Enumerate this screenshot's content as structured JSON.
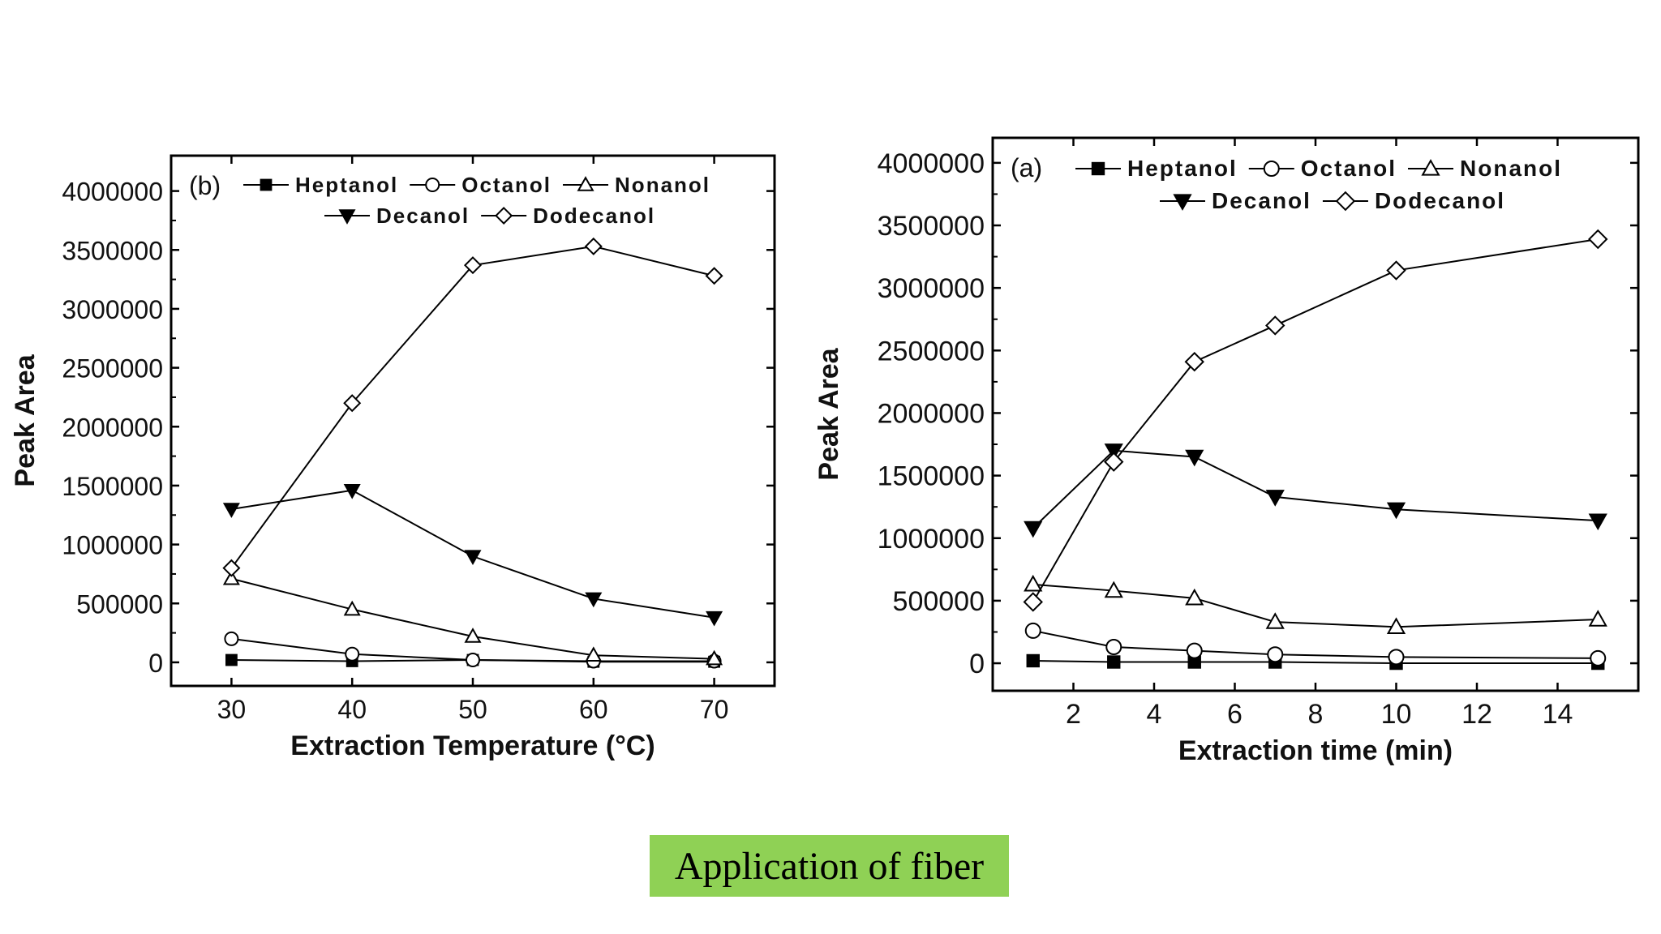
{
  "caption": "Application of fiber",
  "legend_markers": {
    "Heptanol": "filled-square",
    "Octanol": "open-circle",
    "Nonanol": "open-triangle",
    "Decanol": "filled-down-triangle",
    "Dodecanol": "open-diamond"
  },
  "chart_data": [
    {
      "type": "line",
      "panel_label": "(b)",
      "xlabel": "Extraction Temperature (°C)",
      "ylabel": "Peak Area",
      "xlim": [
        25,
        75
      ],
      "ylim": [
        -200000,
        4300000
      ],
      "x_ticks": [
        30,
        40,
        50,
        60,
        70
      ],
      "y_ticks": [
        0,
        500000,
        1000000,
        1500000,
        2000000,
        2500000,
        3000000,
        3500000,
        4000000
      ],
      "legend_rows": [
        [
          "Heptanol",
          "Octanol",
          "Nonanol"
        ],
        [
          "Decanol",
          "Dodecanol"
        ]
      ],
      "grid": false,
      "series": [
        {
          "name": "Heptanol",
          "x": [
            30,
            40,
            50,
            60,
            70
          ],
          "values": [
            20000,
            10000,
            20000,
            5000,
            5000
          ]
        },
        {
          "name": "Octanol",
          "x": [
            30,
            40,
            50,
            60,
            70
          ],
          "values": [
            200000,
            70000,
            20000,
            10000,
            10000
          ]
        },
        {
          "name": "Nonanol",
          "x": [
            30,
            40,
            50,
            60,
            70
          ],
          "values": [
            710000,
            450000,
            220000,
            60000,
            30000
          ]
        },
        {
          "name": "Decanol",
          "x": [
            30,
            40,
            50,
            60,
            70
          ],
          "values": [
            1300000,
            1460000,
            900000,
            540000,
            380000
          ]
        },
        {
          "name": "Dodecanol",
          "x": [
            30,
            40,
            50,
            60,
            70
          ],
          "values": [
            800000,
            2200000,
            3370000,
            3530000,
            3280000
          ]
        }
      ]
    },
    {
      "type": "line",
      "panel_label": "(a)",
      "xlabel": "Extraction time (min)",
      "ylabel": "Peak Area",
      "xlim": [
        0,
        16
      ],
      "ylim": [
        -220000,
        4200000
      ],
      "x_ticks": [
        2,
        4,
        6,
        8,
        10,
        12,
        14
      ],
      "y_ticks": [
        0,
        500000,
        1000000,
        1500000,
        2000000,
        2500000,
        3000000,
        3500000,
        4000000
      ],
      "legend_rows": [
        [
          "Heptanol",
          "Octanol",
          "Nonanol"
        ],
        [
          "Decanol",
          "Dodecanol"
        ]
      ],
      "grid": false,
      "series": [
        {
          "name": "Heptanol",
          "x": [
            1,
            3,
            5,
            7,
            10,
            15
          ],
          "values": [
            20000,
            10000,
            10000,
            10000,
            0,
            0
          ]
        },
        {
          "name": "Octanol",
          "x": [
            1,
            3,
            5,
            7,
            10,
            15
          ],
          "values": [
            260000,
            130000,
            100000,
            70000,
            50000,
            40000
          ]
        },
        {
          "name": "Nonanol",
          "x": [
            1,
            3,
            5,
            7,
            10,
            15
          ],
          "values": [
            630000,
            580000,
            520000,
            330000,
            290000,
            350000
          ]
        },
        {
          "name": "Decanol",
          "x": [
            1,
            3,
            5,
            7,
            10,
            15
          ],
          "values": [
            1080000,
            1700000,
            1650000,
            1330000,
            1230000,
            1140000
          ]
        },
        {
          "name": "Dodecanol",
          "x": [
            1,
            3,
            5,
            7,
            10,
            15
          ],
          "values": [
            490000,
            1610000,
            2410000,
            2700000,
            3140000,
            3390000
          ]
        }
      ]
    }
  ]
}
